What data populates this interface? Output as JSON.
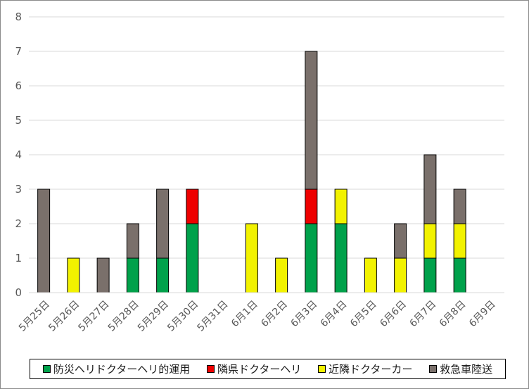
{
  "chart_data": {
    "type": "bar",
    "stacked": true,
    "title": "",
    "xlabel": "",
    "ylabel": "",
    "ylim": [
      0,
      8
    ],
    "yticks": [
      0,
      1,
      2,
      3,
      4,
      5,
      6,
      7,
      8
    ],
    "grid": true,
    "legend_position": "bottom",
    "categories": [
      "5月25日",
      "5月26日",
      "5月27日",
      "5月28日",
      "5月29日",
      "5月30日",
      "5月31日",
      "6月1日",
      "6月2日",
      "6月3日",
      "6月4日",
      "6月5日",
      "6月6日",
      "6月7日",
      "6月8日",
      "6月9日"
    ],
    "series": [
      {
        "name": "防災ヘリドクターヘリ的運用",
        "color": "#00a14b",
        "values": [
          0,
          0,
          0,
          1,
          1,
          2,
          0,
          0,
          0,
          2,
          2,
          0,
          0,
          1,
          1,
          0
        ]
      },
      {
        "name": "隣県ドクターヘリ",
        "color": "#ee0000",
        "values": [
          0,
          0,
          0,
          0,
          0,
          1,
          0,
          0,
          0,
          1,
          0,
          0,
          0,
          0,
          0,
          0
        ]
      },
      {
        "name": "近隣ドクターカー",
        "color": "#f2f200",
        "values": [
          0,
          1,
          0,
          0,
          0,
          0,
          0,
          2,
          1,
          0,
          1,
          1,
          1,
          1,
          1,
          0
        ]
      },
      {
        "name": "救急車陸送",
        "color": "#7a706b",
        "values": [
          3,
          0,
          1,
          1,
          2,
          0,
          0,
          0,
          0,
          4,
          0,
          0,
          1,
          2,
          1,
          0
        ]
      }
    ]
  }
}
